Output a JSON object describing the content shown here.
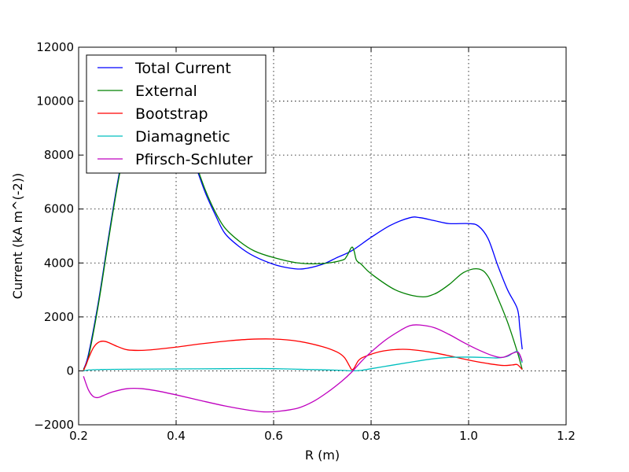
{
  "chart_data": {
    "type": "line",
    "title": "",
    "xlabel": "R (m)",
    "ylabel": "Current (kA m^(-2))",
    "xlim": [
      0.2,
      1.2
    ],
    "ylim": [
      -2000,
      12000
    ],
    "grid": true,
    "legend_position": "top-left",
    "x_ticks": [
      "0.2",
      "0.4",
      "0.6",
      "0.8",
      "1.0",
      "1.2"
    ],
    "x_tick_values": [
      0.2,
      0.4,
      0.6,
      0.8,
      1.0,
      1.2
    ],
    "y_ticks": [
      "−2000",
      "0",
      "2000",
      "4000",
      "6000",
      "8000",
      "10000",
      "12000"
    ],
    "y_tick_values": [
      -2000,
      0,
      2000,
      4000,
      6000,
      8000,
      10000,
      12000
    ],
    "series": [
      {
        "name": "Total Current",
        "color": "#0000ff",
        "points": [
          [
            0.21,
            50
          ],
          [
            0.22,
            600
          ],
          [
            0.24,
            2500
          ],
          [
            0.26,
            4800
          ],
          [
            0.28,
            7000
          ],
          [
            0.3,
            8800
          ],
          [
            0.32,
            9900
          ],
          [
            0.34,
            10300
          ],
          [
            0.36,
            10300
          ],
          [
            0.38,
            10000
          ],
          [
            0.4,
            9500
          ],
          [
            0.42,
            8600
          ],
          [
            0.44,
            7600
          ],
          [
            0.46,
            6600
          ],
          [
            0.48,
            5800
          ],
          [
            0.5,
            5100
          ],
          [
            0.53,
            4600
          ],
          [
            0.56,
            4250
          ],
          [
            0.6,
            3950
          ],
          [
            0.63,
            3820
          ],
          [
            0.66,
            3780
          ],
          [
            0.7,
            3950
          ],
          [
            0.73,
            4200
          ],
          [
            0.76,
            4450
          ],
          [
            0.8,
            4950
          ],
          [
            0.84,
            5400
          ],
          [
            0.88,
            5680
          ],
          [
            0.9,
            5680
          ],
          [
            0.93,
            5570
          ],
          [
            0.96,
            5460
          ],
          [
            1.0,
            5460
          ],
          [
            1.02,
            5370
          ],
          [
            1.04,
            4900
          ],
          [
            1.06,
            3900
          ],
          [
            1.08,
            3000
          ],
          [
            1.1,
            2300
          ],
          [
            1.105,
            1600
          ],
          [
            1.11,
            800
          ]
        ]
      },
      {
        "name": "External",
        "color": "#008000",
        "points": [
          [
            0.21,
            50
          ],
          [
            0.22,
            500
          ],
          [
            0.24,
            2400
          ],
          [
            0.26,
            4700
          ],
          [
            0.28,
            6900
          ],
          [
            0.3,
            8700
          ],
          [
            0.32,
            9800
          ],
          [
            0.34,
            10200
          ],
          [
            0.36,
            10250
          ],
          [
            0.38,
            10000
          ],
          [
            0.4,
            9500
          ],
          [
            0.42,
            8700
          ],
          [
            0.44,
            7700
          ],
          [
            0.46,
            6700
          ],
          [
            0.48,
            5900
          ],
          [
            0.5,
            5300
          ],
          [
            0.53,
            4800
          ],
          [
            0.56,
            4450
          ],
          [
            0.6,
            4200
          ],
          [
            0.65,
            4000
          ],
          [
            0.7,
            3980
          ],
          [
            0.74,
            4100
          ],
          [
            0.75,
            4250
          ],
          [
            0.76,
            4580
          ],
          [
            0.765,
            4450
          ],
          [
            0.77,
            4100
          ],
          [
            0.78,
            3950
          ],
          [
            0.8,
            3600
          ],
          [
            0.85,
            3000
          ],
          [
            0.9,
            2750
          ],
          [
            0.93,
            2850
          ],
          [
            0.96,
            3200
          ],
          [
            0.99,
            3650
          ],
          [
            1.02,
            3780
          ],
          [
            1.04,
            3500
          ],
          [
            1.06,
            2700
          ],
          [
            1.08,
            1800
          ],
          [
            1.1,
            700
          ],
          [
            1.11,
            50
          ]
        ]
      },
      {
        "name": "Bootstrap",
        "color": "#ff0000",
        "points": [
          [
            0.21,
            0
          ],
          [
            0.22,
            450
          ],
          [
            0.23,
            850
          ],
          [
            0.24,
            1050
          ],
          [
            0.25,
            1100
          ],
          [
            0.26,
            1060
          ],
          [
            0.28,
            900
          ],
          [
            0.3,
            780
          ],
          [
            0.33,
            760
          ],
          [
            0.36,
            800
          ],
          [
            0.4,
            880
          ],
          [
            0.45,
            1000
          ],
          [
            0.5,
            1100
          ],
          [
            0.55,
            1170
          ],
          [
            0.6,
            1180
          ],
          [
            0.65,
            1100
          ],
          [
            0.7,
            900
          ],
          [
            0.73,
            700
          ],
          [
            0.745,
            500
          ],
          [
            0.755,
            200
          ],
          [
            0.76,
            50
          ],
          [
            0.765,
            100
          ],
          [
            0.775,
            400
          ],
          [
            0.79,
            550
          ],
          [
            0.82,
            720
          ],
          [
            0.85,
            790
          ],
          [
            0.88,
            790
          ],
          [
            0.92,
            700
          ],
          [
            0.96,
            560
          ],
          [
            1.0,
            400
          ],
          [
            1.04,
            270
          ],
          [
            1.07,
            200
          ],
          [
            1.09,
            220
          ],
          [
            1.1,
            230
          ],
          [
            1.11,
            50
          ]
        ]
      },
      {
        "name": "Diamagnetic",
        "color": "#00bfbf",
        "points": [
          [
            0.21,
            0
          ],
          [
            0.22,
            30
          ],
          [
            0.25,
            50
          ],
          [
            0.3,
            60
          ],
          [
            0.4,
            70
          ],
          [
            0.5,
            80
          ],
          [
            0.55,
            85
          ],
          [
            0.6,
            80
          ],
          [
            0.65,
            60
          ],
          [
            0.7,
            40
          ],
          [
            0.74,
            20
          ],
          [
            0.76,
            0
          ],
          [
            0.78,
            20
          ],
          [
            0.8,
            80
          ],
          [
            0.84,
            200
          ],
          [
            0.88,
            320
          ],
          [
            0.92,
            430
          ],
          [
            0.96,
            500
          ],
          [
            1.0,
            510
          ],
          [
            1.04,
            490
          ],
          [
            1.06,
            480
          ],
          [
            1.08,
            540
          ],
          [
            1.09,
            650
          ],
          [
            1.1,
            720
          ],
          [
            1.105,
            560
          ],
          [
            1.11,
            300
          ]
        ]
      },
      {
        "name": "Pfirsch-Schluter",
        "color": "#bf00bf",
        "points": [
          [
            0.21,
            -200
          ],
          [
            0.22,
            -700
          ],
          [
            0.23,
            -950
          ],
          [
            0.24,
            -990
          ],
          [
            0.25,
            -920
          ],
          [
            0.27,
            -780
          ],
          [
            0.3,
            -660
          ],
          [
            0.33,
            -660
          ],
          [
            0.36,
            -740
          ],
          [
            0.4,
            -890
          ],
          [
            0.45,
            -1100
          ],
          [
            0.5,
            -1300
          ],
          [
            0.55,
            -1460
          ],
          [
            0.58,
            -1520
          ],
          [
            0.61,
            -1500
          ],
          [
            0.65,
            -1380
          ],
          [
            0.68,
            -1150
          ],
          [
            0.71,
            -800
          ],
          [
            0.74,
            -380
          ],
          [
            0.76,
            -50
          ],
          [
            0.78,
            350
          ],
          [
            0.8,
            700
          ],
          [
            0.83,
            1150
          ],
          [
            0.86,
            1500
          ],
          [
            0.88,
            1680
          ],
          [
            0.9,
            1700
          ],
          [
            0.93,
            1600
          ],
          [
            0.96,
            1350
          ],
          [
            0.99,
            1050
          ],
          [
            1.02,
            780
          ],
          [
            1.05,
            560
          ],
          [
            1.07,
            500
          ],
          [
            1.09,
            650
          ],
          [
            1.1,
            700
          ],
          [
            1.105,
            600
          ],
          [
            1.11,
            350
          ]
        ]
      }
    ]
  }
}
